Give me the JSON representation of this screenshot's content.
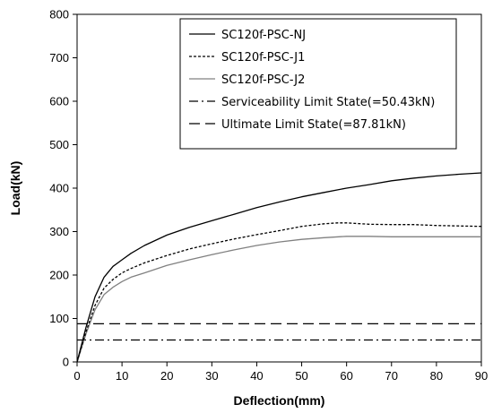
{
  "chart_data": {
    "type": "line",
    "title": "",
    "xlabel": "Deflection(mm)",
    "ylabel": "Load(kN)",
    "xlim": [
      0,
      90
    ],
    "ylim": [
      0,
      800
    ],
    "xticks": [
      0,
      10,
      20,
      30,
      40,
      50,
      60,
      70,
      80,
      90
    ],
    "yticks": [
      0,
      100,
      200,
      300,
      400,
      500,
      600,
      700,
      800
    ],
    "grid": false,
    "legend_position": "top-right",
    "series": [
      {
        "name": "SC120f-PSC-NJ",
        "style": "solid",
        "color": "#000000",
        "x": [
          0,
          2,
          4,
          6,
          8,
          10,
          12,
          15,
          20,
          25,
          30,
          35,
          40,
          45,
          50,
          55,
          60,
          65,
          70,
          75,
          80,
          85,
          90
        ],
        "y": [
          0,
          80,
          150,
          195,
          220,
          235,
          250,
          268,
          292,
          310,
          325,
          340,
          355,
          368,
          380,
          390,
          400,
          408,
          417,
          423,
          428,
          432,
          435
        ]
      },
      {
        "name": "SC120f-PSC-J1",
        "style": "dotted",
        "color": "#000000",
        "x": [
          0,
          2,
          4,
          6,
          8,
          10,
          12,
          15,
          20,
          25,
          30,
          35,
          40,
          45,
          50,
          55,
          58,
          60,
          65,
          70,
          75,
          80,
          85,
          90
        ],
        "y": [
          0,
          70,
          130,
          170,
          190,
          205,
          215,
          228,
          245,
          260,
          272,
          283,
          293,
          302,
          312,
          318,
          320,
          320,
          317,
          316,
          316,
          314,
          313,
          312
        ]
      },
      {
        "name": "SC120f-PSC-J2",
        "style": "solid",
        "color": "#808080",
        "x": [
          0,
          2,
          4,
          6,
          8,
          10,
          12,
          15,
          20,
          25,
          30,
          35,
          40,
          45,
          50,
          55,
          60,
          65,
          70,
          75,
          80,
          85,
          90
        ],
        "y": [
          0,
          65,
          120,
          155,
          172,
          185,
          195,
          205,
          222,
          235,
          247,
          258,
          268,
          276,
          282,
          286,
          289,
          289,
          288,
          288,
          288,
          288,
          288
        ]
      },
      {
        "name": "Serviceability Limit State(=50.43kN)",
        "style": "dash-dot",
        "color": "#000000",
        "x": [
          0,
          90
        ],
        "y": [
          50.43,
          50.43
        ]
      },
      {
        "name": "Ultimate Limit State(=87.81kN)",
        "style": "dashed",
        "color": "#000000",
        "x": [
          0,
          90
        ],
        "y": [
          87.81,
          87.81
        ]
      }
    ]
  }
}
